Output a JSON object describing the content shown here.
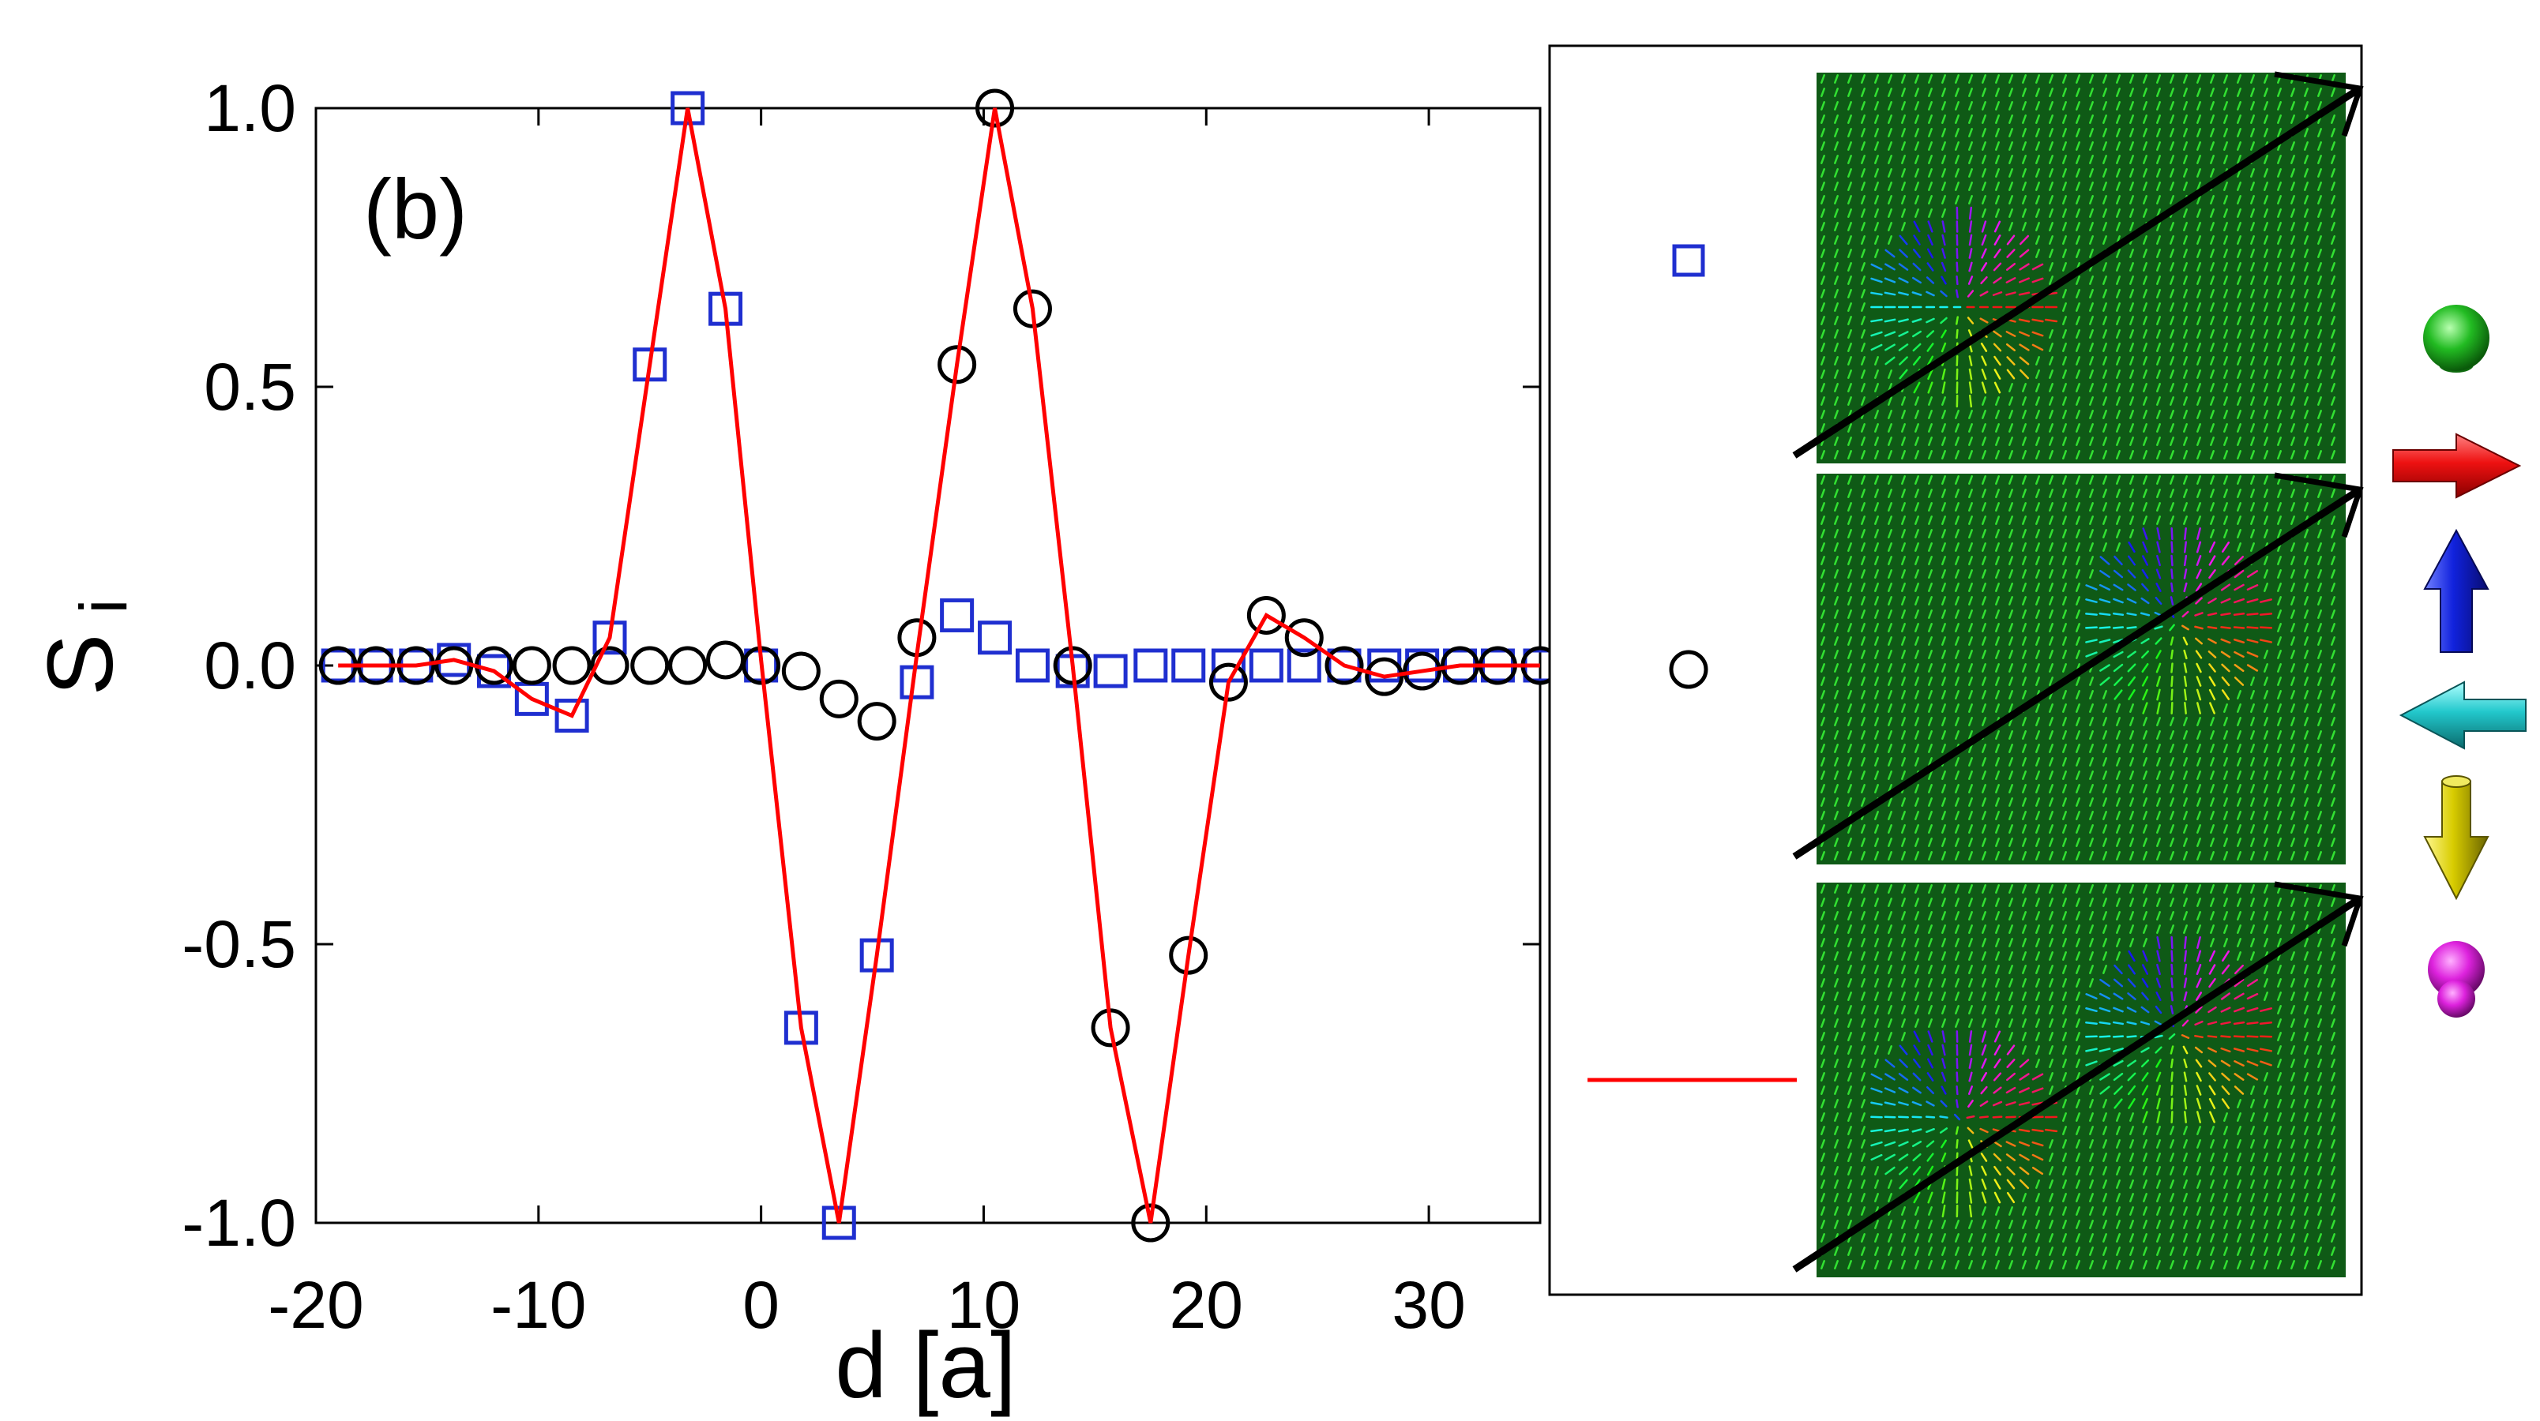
{
  "chart_data": {
    "type": "scatter",
    "panel_label": "(b)",
    "xlabel": "d [a]",
    "ylabel": "S",
    "ylabel_subscript": "i",
    "xlim": [
      -20,
      35
    ],
    "ylim": [
      -1.0,
      1.0
    ],
    "xticks": [
      -20,
      -10,
      0,
      10,
      20,
      30
    ],
    "xtick_labels": [
      "-20",
      "-10",
      "0",
      "10",
      "20",
      "30"
    ],
    "yticks": [
      -1.0,
      -0.5,
      0.0,
      0.5,
      1.0
    ],
    "ytick_labels": [
      "-1.0",
      "-0.5",
      "0.0",
      "0.5",
      "1.0"
    ],
    "grid": false,
    "series": [
      {
        "marker": "square",
        "color": "#1f2fd0",
        "x": [
          -19,
          -17.3,
          -15.5,
          -13.8,
          -12,
          -10.3,
          -8.5,
          -6.8,
          -5,
          -3.3,
          -1.6,
          0,
          1.8,
          3.5,
          5.2,
          7,
          8.8,
          10.5,
          12.2,
          14,
          15.7,
          17.5,
          19.2,
          21,
          22.7,
          24.4,
          26.2,
          28,
          29.7,
          31.4,
          33.1,
          35
        ],
        "y": [
          0,
          0,
          0,
          0.01,
          -0.01,
          -0.06,
          -0.09,
          0.05,
          0.54,
          1.0,
          0.64,
          0,
          -0.65,
          -1.0,
          -0.52,
          -0.03,
          0.09,
          0.05,
          0,
          -0.01,
          -0.01,
          0,
          0,
          0,
          0,
          0,
          0,
          0,
          0,
          0,
          0,
          0
        ]
      },
      {
        "marker": "circle",
        "color": "#000000",
        "x": [
          -19,
          -17.3,
          -15.5,
          -13.8,
          -12,
          -10.3,
          -8.5,
          -6.8,
          -5,
          -3.3,
          -1.6,
          0,
          1.8,
          3.5,
          5.2,
          7,
          8.8,
          10.5,
          12.2,
          14,
          15.7,
          17.5,
          19.2,
          21,
          22.7,
          24.4,
          26.2,
          28,
          29.7,
          31.4,
          33.1,
          35
        ],
        "y": [
          0,
          0,
          0,
          0,
          0,
          0,
          0,
          0,
          0,
          0,
          0.01,
          0,
          -0.01,
          -0.06,
          -0.1,
          0.05,
          0.54,
          1.0,
          0.64,
          0,
          -0.65,
          -1.0,
          -0.52,
          -0.03,
          0.09,
          0.05,
          0,
          -0.02,
          -0.01,
          0,
          0,
          0
        ]
      },
      {
        "marker": "line",
        "color": "#ff0000",
        "x": [
          -19,
          -17.3,
          -15.5,
          -13.8,
          -12,
          -10.3,
          -8.5,
          -6.8,
          -5,
          -3.3,
          -1.6,
          0,
          1.8,
          3.5,
          5.2,
          7,
          8.8,
          10.5,
          12.2,
          14,
          15.7,
          17.5,
          19.2,
          21,
          22.7,
          24.4,
          26.2,
          28,
          29.7,
          31.4,
          33.1,
          35
        ],
        "y": [
          0,
          0,
          0,
          0.01,
          -0.01,
          -0.06,
          -0.09,
          0.05,
          0.54,
          1.0,
          0.64,
          0.01,
          -0.65,
          -1.0,
          -0.52,
          0.02,
          0.54,
          1.0,
          0.64,
          0,
          -0.65,
          -1.0,
          -0.52,
          -0.03,
          0.09,
          0.05,
          0,
          -0.02,
          -0.01,
          0,
          0,
          0
        ]
      }
    ]
  },
  "inset": {
    "rows": [
      {
        "legend_marker": "square",
        "legend_color": "#1f2fd0",
        "skyrmion_centers": [
          [
            0.27,
            0.6
          ]
        ]
      },
      {
        "legend_marker": "circle",
        "legend_color": "#000000",
        "skyrmion_centers": [
          [
            0.68,
            0.38
          ]
        ]
      },
      {
        "legend_marker": "line",
        "legend_color": "#ff0000",
        "skyrmion_centers": [
          [
            0.27,
            0.6
          ],
          [
            0.68,
            0.38
          ]
        ]
      }
    ],
    "background_color": "#0f5a16",
    "arrow_color": "#32e032"
  },
  "spin_key": [
    {
      "icon": "sphere-up-icon",
      "color": "#22bb22"
    },
    {
      "icon": "arrow-right-icon",
      "color": "#ee1111"
    },
    {
      "icon": "arrow-up-icon",
      "color": "#1122dd"
    },
    {
      "icon": "arrow-left-icon",
      "color": "#22c8cc"
    },
    {
      "icon": "arrow-down-icon",
      "color": "#d8cc00"
    },
    {
      "icon": "sphere-down-icon",
      "color": "#dd22dd"
    }
  ]
}
